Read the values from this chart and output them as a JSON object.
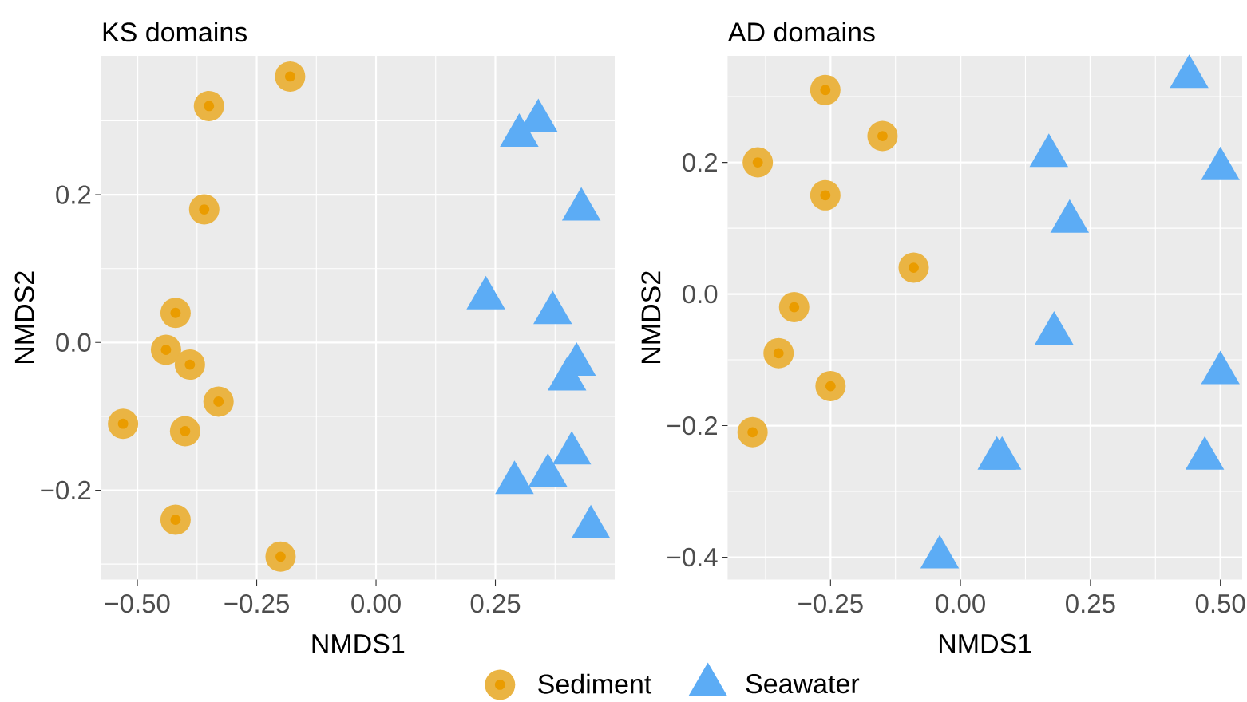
{
  "chart_data": [
    {
      "type": "scatter",
      "title": "KS domains",
      "xlabel": "NMDS1",
      "ylabel": "NMDS2",
      "xlim": [
        -0.576,
        0.5
      ],
      "ylim": [
        -0.321,
        0.388
      ],
      "xticks": [
        {
          "value": -0.5,
          "label": "−0.50"
        },
        {
          "value": -0.25,
          "label": "−0.25"
        },
        {
          "value": 0,
          "label": "0.00"
        },
        {
          "value": 0.25,
          "label": "0.25"
        }
      ],
      "yticks": [
        {
          "value": -0.2,
          "label": "−0.2"
        },
        {
          "value": 0,
          "label": "0.0"
        },
        0.2
      ],
      "grid": true,
      "legend": "bottom",
      "series": [
        {
          "name": "Sediment",
          "color": "#eab443",
          "marker": "circle",
          "x": [
            -0.18,
            -0.35,
            -0.36,
            -0.42,
            -0.44,
            -0.39,
            -0.33,
            -0.53,
            -0.4,
            -0.42,
            -0.2
          ],
          "values": [
            0.36,
            0.32,
            0.18,
            0.04,
            -0.01,
            -0.03,
            -0.08,
            -0.11,
            -0.12,
            -0.24,
            -0.29
          ]
        },
        {
          "name": "Seawater",
          "color": "#5cacf5",
          "marker": "triangle",
          "x": [
            0.34,
            0.3,
            0.43,
            0.23,
            0.37,
            0.42,
            0.4,
            0.41,
            0.29,
            0.36,
            0.45
          ],
          "values": [
            0.3,
            0.28,
            0.18,
            0.06,
            0.04,
            -0.03,
            -0.05,
            -0.15,
            -0.19,
            -0.18,
            -0.25
          ]
        }
      ]
    },
    {
      "type": "scatter",
      "title": "AD domains",
      "xlabel": "NMDS1",
      "ylabel": "NMDS2",
      "xlim": [
        -0.448,
        0.542
      ],
      "ylim": [
        -0.434,
        0.362
      ],
      "xticks": [
        {
          "value": -0.25,
          "label": "−0.25"
        },
        {
          "value": 0,
          "label": "0.00"
        },
        {
          "value": 0.25,
          "label": "0.25"
        },
        {
          "value": 0.5,
          "label": "0.50"
        }
      ],
      "yticks": [
        {
          "value": -0.4,
          "label": "−0.4"
        },
        {
          "value": -0.2,
          "label": "−0.2"
        },
        {
          "value": 0,
          "label": "0.0"
        },
        0.2
      ],
      "grid": true,
      "series": [
        {
          "color": "#eab443",
          "marker": "circle",
          "x": [
            -0.26,
            -0.15,
            -0.39,
            -0.26,
            -0.09,
            -0.32,
            -0.35,
            -0.25,
            -0.4
          ],
          "values": [
            0.31,
            0.24,
            0.2,
            0.15,
            0.04,
            -0.02,
            -0.09,
            -0.14,
            -0.21
          ]
        },
        {
          "color": "#5cacf5",
          "marker": "triangle",
          "x": [
            0.44,
            0.17,
            0.5,
            0.21,
            0.18,
            0.5,
            0.08,
            0.07,
            0.47,
            -0.04
          ],
          "values": [
            0.33,
            0.21,
            0.19,
            0.11,
            -0.06,
            -0.12,
            -0.25,
            -0.25,
            -0.25,
            -0.4
          ]
        }
      ]
    }
  ]
}
